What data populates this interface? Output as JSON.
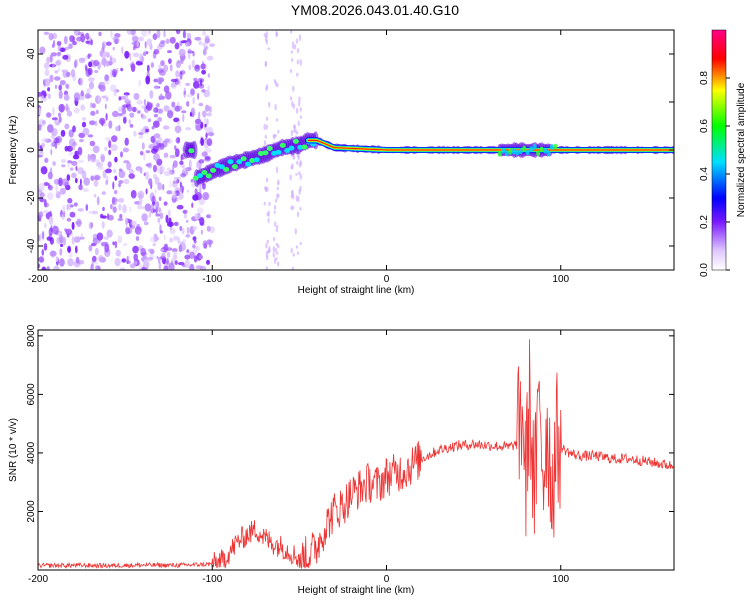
{
  "title": "YM08.2026.043.01.40.G10",
  "chart_data": [
    {
      "type": "heatmap",
      "xlabel": "Height of straight line (km)",
      "ylabel": "Frequency (Hz)",
      "xlim": [
        -200,
        165
      ],
      "ylim": [
        -50,
        50
      ],
      "xticks": [
        -200,
        -100,
        0,
        100
      ],
      "yticks": [
        -40,
        -20,
        0,
        20,
        40
      ],
      "colorbar": {
        "label": "Normalized spectral amplitude",
        "range": [
          0,
          1
        ],
        "ticks": [
          "0.0",
          "0.2",
          "0.4",
          "0.6",
          "0.8"
        ]
      },
      "ridge": [
        {
          "x": -110,
          "y": -12
        },
        {
          "x": -100,
          "y": -9
        },
        {
          "x": -90,
          "y": -6
        },
        {
          "x": -80,
          "y": -4
        },
        {
          "x": -70,
          "y": -2
        },
        {
          "x": -60,
          "y": 1
        },
        {
          "x": -50,
          "y": 2
        },
        {
          "x": -45,
          "y": 4
        },
        {
          "x": -40,
          "y": 4
        },
        {
          "x": -30,
          "y": 1
        },
        {
          "x": 0,
          "y": 0
        },
        {
          "x": 165,
          "y": 0
        }
      ],
      "grid": false
    },
    {
      "type": "line",
      "xlabel": "Height of straight line (km)",
      "ylabel": "SNR (10 * v/v)",
      "xlim": [
        -200,
        165
      ],
      "ylim": [
        0,
        8200
      ],
      "xticks": [
        -200,
        -100,
        0,
        100
      ],
      "yticks": [
        2000,
        4000,
        6000,
        8000
      ],
      "color": "#ee3333",
      "series": [
        {
          "x": [
            -200,
            -180,
            -160,
            -140,
            -120,
            -100,
            -95,
            -90,
            -85,
            -80,
            -75,
            -70,
            -65,
            -60,
            -55,
            -50,
            -45,
            -40,
            -35,
            -30,
            -25,
            -20,
            -15,
            -10,
            -5,
            0,
            5,
            10,
            15,
            20,
            30,
            40,
            50,
            60,
            70,
            75,
            78,
            80,
            82,
            85,
            88,
            90,
            92,
            95,
            98,
            100,
            105,
            110,
            120,
            130,
            140,
            150,
            160,
            165
          ],
          "y": [
            150,
            160,
            150,
            170,
            160,
            200,
            300,
            600,
            1000,
            1200,
            1400,
            1100,
            900,
            800,
            600,
            400,
            500,
            800,
            1500,
            2000,
            2200,
            2600,
            2800,
            3000,
            2900,
            3200,
            3300,
            3400,
            3600,
            3800,
            4100,
            4250,
            4300,
            4250,
            4200,
            4300,
            5500,
            3000,
            5800,
            2500,
            6000,
            3200,
            5000,
            2800,
            4500,
            4200,
            4000,
            3900,
            3900,
            3800,
            3800,
            3700,
            3600,
            3550
          ]
        }
      ]
    }
  ]
}
